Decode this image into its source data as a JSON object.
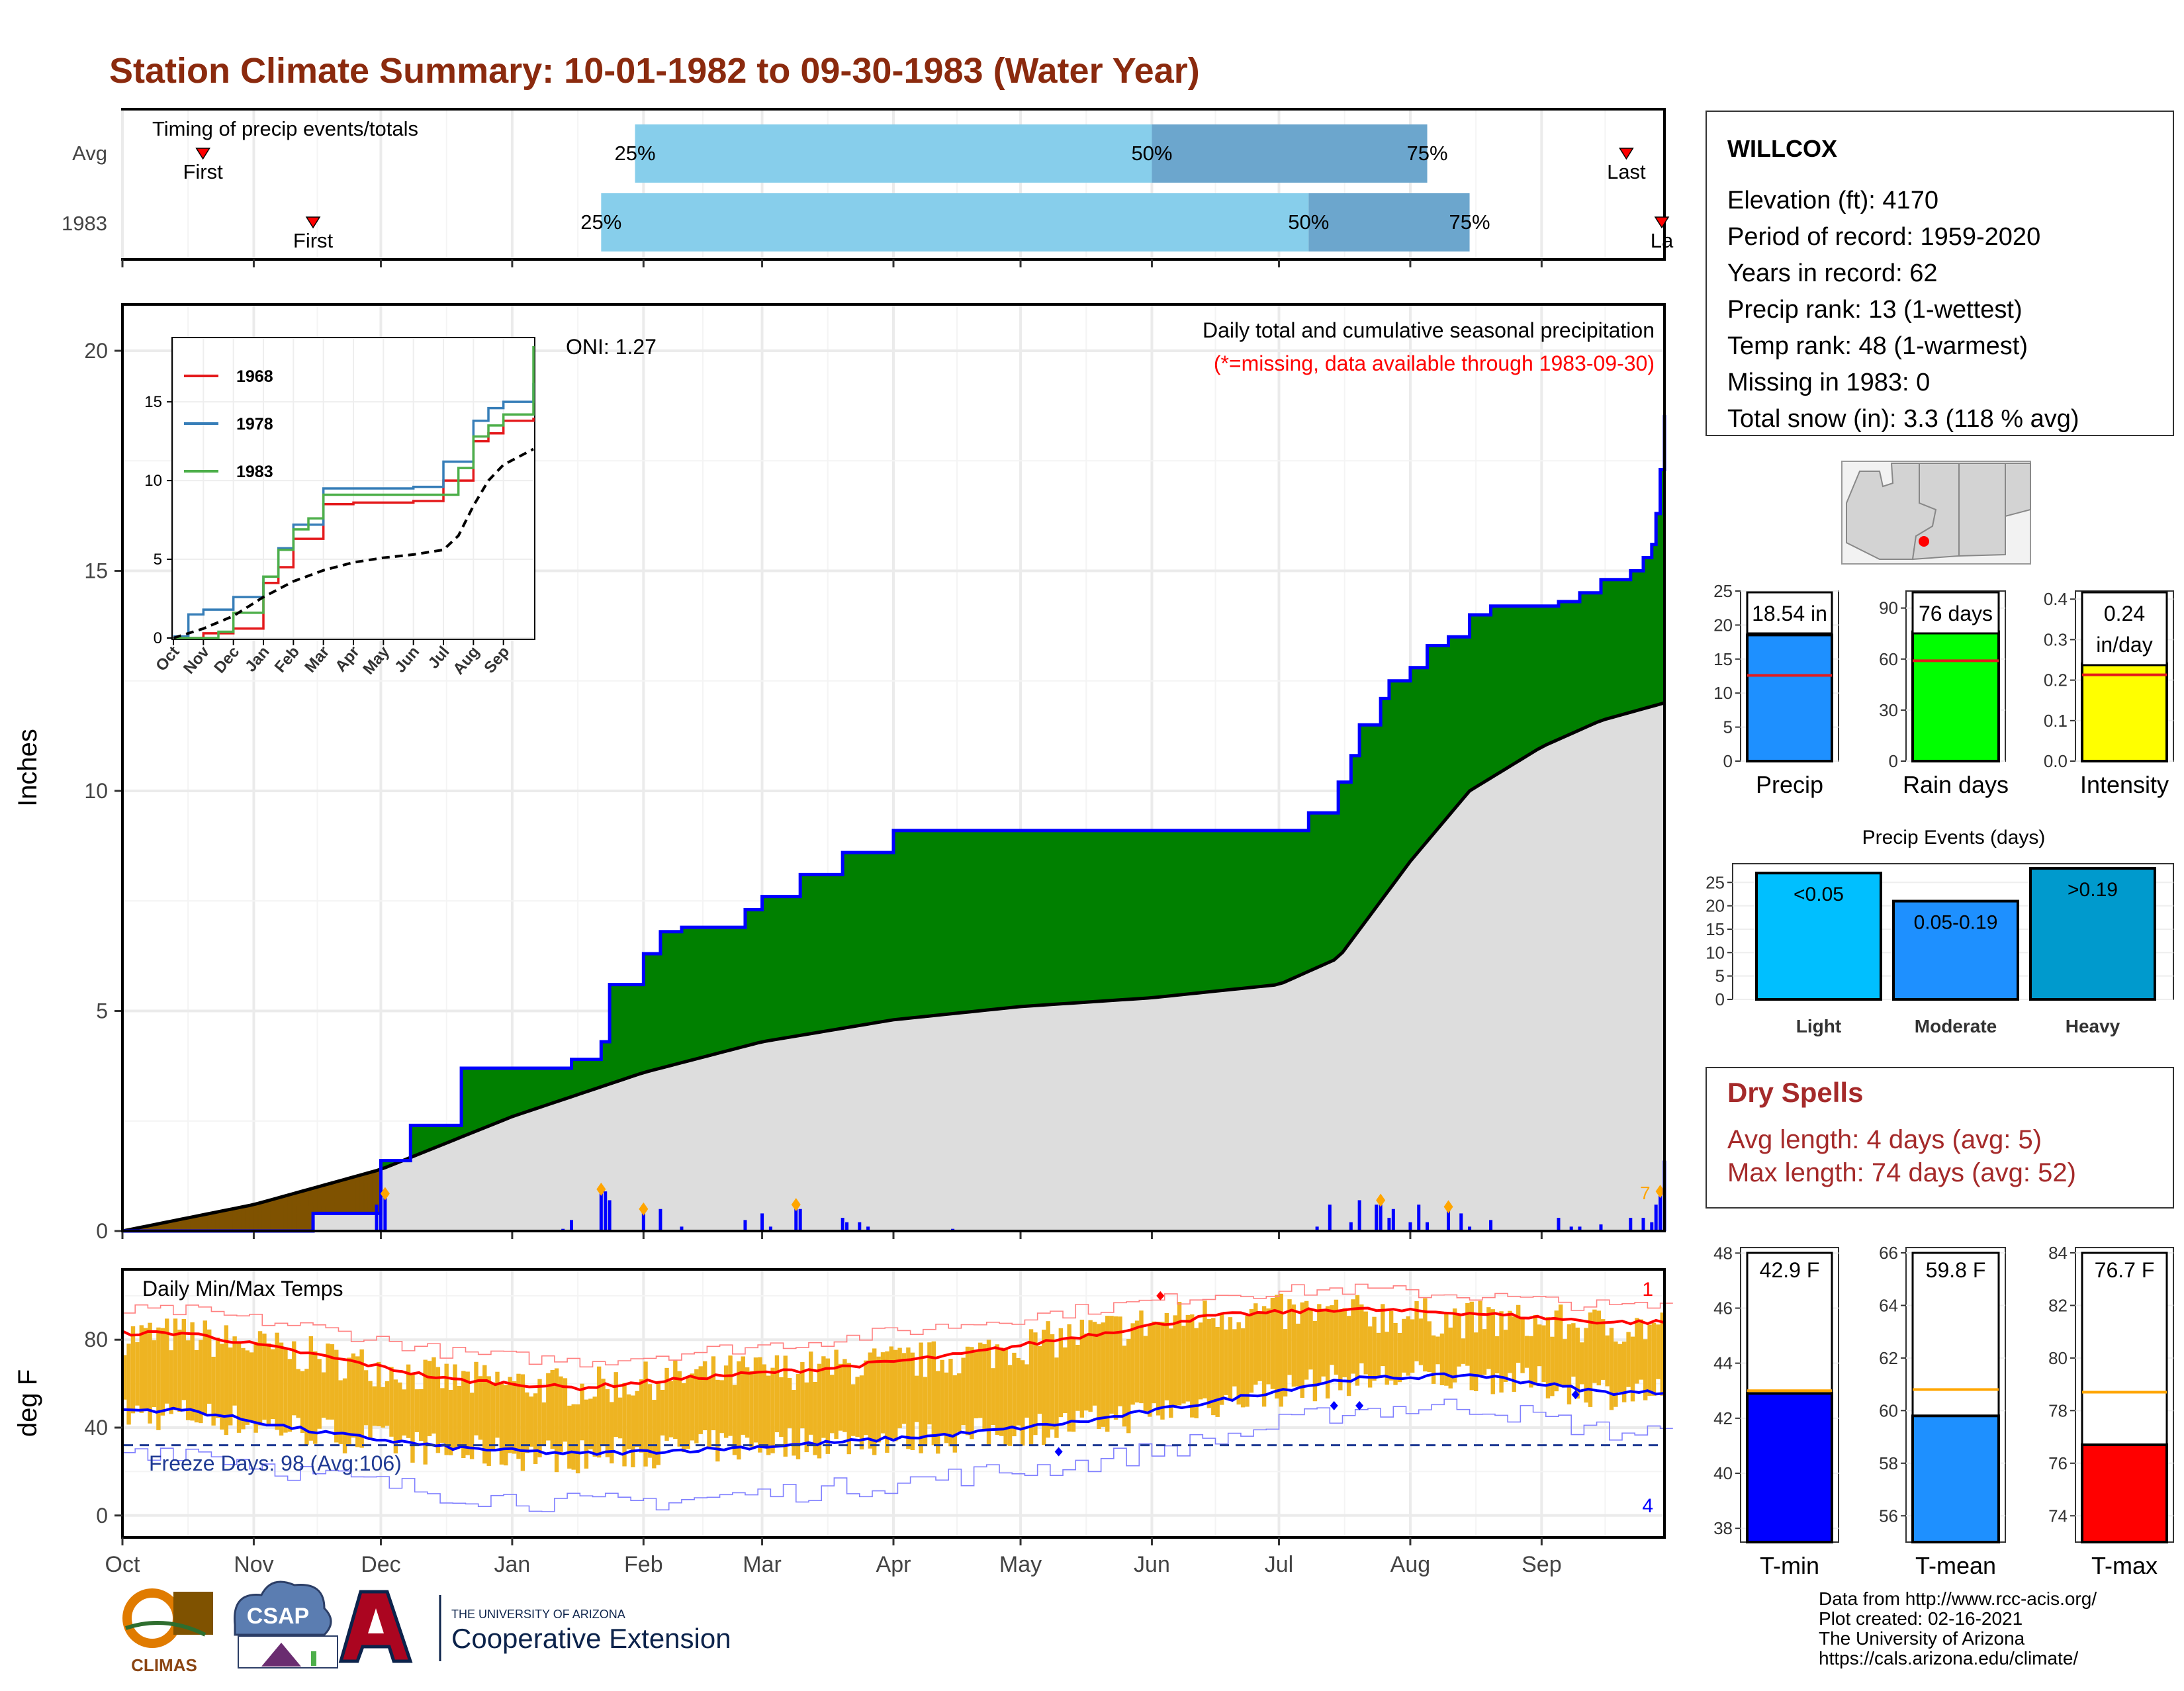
{
  "title": "Station Climate Summary: 10-01-1982 to 09-30-1983 (Water Year)",
  "colors": {
    "title": "#8B2A0E",
    "light_blue": "#87CEEB",
    "steel_blue": "#6CA6CD",
    "green": "#008000",
    "brown": "#7F5200",
    "blue": "#0000FF",
    "gray_fill": "#DDDDDD",
    "orange": "#FFA500",
    "dry_red": "#A52A2A",
    "temp_bar": "#EEB422",
    "red": "#FF0000"
  },
  "timing": {
    "label": "Timing of precip events/totals",
    "rows": [
      {
        "name": "Avg",
        "first": "10-20",
        "last": "09-21",
        "q25": "Jan 30",
        "q50": "Jun 01",
        "q75": "Aug 05",
        "first_label": "First",
        "last_label": "Last",
        "q25_label": "25%",
        "q50_label": "50%",
        "q75_label": "75%"
      },
      {
        "name": "1983",
        "first": "11-15",
        "last": "09-30",
        "q25": "Jan 22",
        "q50": "Jul 08",
        "q75": "Aug 15",
        "first_label": "First",
        "last_label": "La",
        "q25_label": "25%",
        "q50_label": "50%",
        "q75_label": "75%"
      }
    ]
  },
  "main_chart": {
    "ylabel": "Inches",
    "yticks": [
      0,
      5,
      10,
      15,
      20
    ],
    "ylim": [
      0,
      20
    ],
    "oni": "ONI: 1.27",
    "subtitle": "Daily total and cumulative seasonal precipitation",
    "missing_note": "(*=missing, data available through 1983-09-30)",
    "corner_label": "7",
    "month_ticks": [
      "Oct",
      "Nov",
      "Dec",
      "Jan",
      "Feb",
      "Mar",
      "Apr",
      "May",
      "Jun",
      "Jul",
      "Aug",
      "Sep"
    ]
  },
  "inset": {
    "yticks": [
      0,
      5,
      10,
      15
    ],
    "months": [
      "Oct",
      "Nov",
      "Dec",
      "Jan",
      "Feb",
      "Mar",
      "Apr",
      "May",
      "Jun",
      "Jul",
      "Aug",
      "Sep"
    ],
    "legend": [
      {
        "year": "1968",
        "color": "#E41A1C"
      },
      {
        "year": "1978",
        "color": "#377EB8"
      },
      {
        "year": "1983",
        "color": "#4DAF4A"
      }
    ]
  },
  "temp_chart": {
    "title": "Daily Min/Max Temps",
    "ylabel": "deg F",
    "yticks": [
      0,
      40,
      80
    ],
    "freeze_text": "Freeze Days: 98 (Avg:106)",
    "record_high_count": "1",
    "record_low_count": "4",
    "month_ticks": [
      "Oct",
      "Nov",
      "Dec",
      "Jan",
      "Feb",
      "Mar",
      "Apr",
      "May",
      "Jun",
      "Jul",
      "Aug",
      "Sep"
    ]
  },
  "station": {
    "name": "WILLCOX",
    "lines": [
      "Elevation (ft): 4170",
      "Period of record: 1959-2020",
      "Years in record: 62",
      "Precip rank: 13 (1-wettest)",
      "Temp rank: 48 (1-warmest)",
      "Missing in 1983: 0",
      "Total snow (in): 3.3 (118 % avg)"
    ]
  },
  "precip_stats": [
    {
      "label": "Precip",
      "value_label": "18.54 in",
      "yticks": [
        "0",
        "5",
        "10",
        "15",
        "20",
        "25"
      ]
    },
    {
      "label": "Rain days",
      "value_label": "76 days",
      "yticks": [
        "0",
        "30",
        "60",
        "90"
      ]
    },
    {
      "label": "Intensity",
      "value_label": "0.24 in/day",
      "value_line1": "0.24",
      "value_line2": "in/day",
      "yticks": [
        "0.0",
        "0.1",
        "0.2",
        "0.3",
        "0.4"
      ]
    }
  ],
  "precip_events": {
    "title": "Precip Events (days)",
    "yticks": [
      "0",
      "5",
      "10",
      "15",
      "20",
      "25"
    ],
    "bars": [
      {
        "label": "Light",
        "inner": "<0.05",
        "value": 27,
        "color": "#00BFFF"
      },
      {
        "label": "Moderate",
        "inner": "0.05-0.19",
        "value": 21,
        "color": "#1E90FF"
      },
      {
        "label": "Heavy",
        "inner": ">0.19",
        "value": 28,
        "color": "#009ACD"
      }
    ]
  },
  "dry_spells": {
    "title": "Dry Spells",
    "avg_length": "Avg length: 4 days (avg: 5)",
    "max_length": "Max length: 74 days (avg: 52)"
  },
  "temp_stats": [
    {
      "label": "T-min",
      "value_label": "42.9 F",
      "value": 42.9,
      "avg": 43.0,
      "ylim": [
        37.5,
        48.2
      ],
      "yticks": [
        38,
        40,
        42,
        44,
        46,
        48
      ],
      "color": "#0000FF"
    },
    {
      "label": "T-mean",
      "value_label": "59.8 F",
      "value": 59.8,
      "avg": 60.8,
      "ylim": [
        55.0,
        66.2
      ],
      "yticks": [
        56,
        58,
        60,
        62,
        64,
        66
      ],
      "color": "#1E90FF"
    },
    {
      "label": "T-max",
      "value_label": "76.7 F",
      "value": 76.7,
      "avg": 78.7,
      "ylim": [
        73.0,
        84.2
      ],
      "yticks": [
        74,
        76,
        78,
        80,
        82,
        84
      ],
      "color": "#FF0000"
    }
  ],
  "chart_data": [
    {
      "type": "area",
      "title": "Daily total and cumulative seasonal precipitation",
      "ylabel": "Inches",
      "ylim": [
        0,
        20
      ],
      "cumulative_1983": {
        "x": [
          "10-01",
          "11-15",
          "12-01",
          "12-08",
          "12-20",
          "01-15",
          "01-22",
          "01-24",
          "02-01",
          "02-05",
          "02-10",
          "02-25",
          "03-01",
          "03-10",
          "03-20",
          "04-01",
          "05-01",
          "06-01",
          "07-01",
          "07-08",
          "07-15",
          "07-18",
          "07-20",
          "07-25",
          "07-27",
          "08-01",
          "08-05",
          "08-10",
          "08-15",
          "08-20",
          "09-01",
          "09-05",
          "09-10",
          "09-15",
          "09-22",
          "09-25",
          "09-27",
          "09-28",
          "09-29",
          "09-30"
        ],
        "y": [
          0,
          0.4,
          1.6,
          2.4,
          3.7,
          3.9,
          4.3,
          5.6,
          6.3,
          6.8,
          6.9,
          7.3,
          7.6,
          8.1,
          8.6,
          9.1,
          9.1,
          9.1,
          9.1,
          9.5,
          10.2,
          10.8,
          11.5,
          12.1,
          12.5,
          12.8,
          13.3,
          13.5,
          14.0,
          14.2,
          14.2,
          14.3,
          14.5,
          14.8,
          15.0,
          15.3,
          15.6,
          16.3,
          17.3,
          18.54
        ]
      },
      "average_cumulative": {
        "x": [
          "10-01",
          "11-01",
          "12-01",
          "01-01",
          "02-01",
          "03-01",
          "04-01",
          "05-01",
          "06-01",
          "07-01",
          "07-15",
          "08-01",
          "08-15",
          "09-01",
          "09-15",
          "09-30"
        ],
        "y": [
          0,
          0.6,
          1.4,
          2.6,
          3.6,
          4.3,
          4.8,
          5.1,
          5.3,
          5.6,
          6.2,
          8.4,
          10.0,
          11.0,
          11.6,
          12.0
        ]
      },
      "daily_precip": {
        "x": [
          "11-15",
          "11-30",
          "12-01",
          "12-02",
          "01-13",
          "01-15",
          "01-22",
          "01-23",
          "01-24",
          "02-01",
          "02-05",
          "02-10",
          "02-25",
          "03-01",
          "03-03",
          "03-09",
          "03-10",
          "03-20",
          "03-21",
          "03-24",
          "03-26",
          "04-15",
          "07-10",
          "07-13",
          "07-18",
          "07-20",
          "07-24",
          "07-25",
          "07-27",
          "07-28",
          "08-01",
          "08-03",
          "08-05",
          "08-10",
          "08-13",
          "08-15",
          "08-20",
          "09-05",
          "09-08",
          "09-10",
          "09-15",
          "09-22",
          "09-25",
          "09-27",
          "09-28",
          "09-29",
          "09-30"
        ],
        "y": [
          0.25,
          0.6,
          1.1,
          0.85,
          0.05,
          0.25,
          0.95,
          0.9,
          0.7,
          0.5,
          0.5,
          0.1,
          0.25,
          0.4,
          0.1,
          0.6,
          0.5,
          0.3,
          0.2,
          0.2,
          0.1,
          0.05,
          0.1,
          0.6,
          0.2,
          0.7,
          0.6,
          0.7,
          0.3,
          0.5,
          0.2,
          0.6,
          0.2,
          0.55,
          0.4,
          0.1,
          0.25,
          0.3,
          0.1,
          0.1,
          0.15,
          0.3,
          0.3,
          0.2,
          0.6,
          0.9,
          1.6
        ]
      }
    },
    {
      "type": "line",
      "title": "",
      "ylim": [
        0,
        19
      ],
      "xlabels": [
        "Oct",
        "Nov",
        "Dec",
        "Jan",
        "Feb",
        "Mar",
        "Apr",
        "May",
        "Jun",
        "Jul",
        "Aug",
        "Sep"
      ],
      "series": [
        {
          "name": "1968",
          "x": [
            0,
            1,
            2,
            3,
            3.5,
            4,
            5,
            6,
            7,
            8,
            9,
            10,
            10.5,
            11,
            12
          ],
          "y": [
            0,
            0.3,
            0.6,
            3.5,
            4.5,
            6.3,
            8.5,
            8.6,
            8.6,
            8.7,
            10.0,
            12.5,
            13.0,
            13.8,
            14.0
          ]
        },
        {
          "name": "1978",
          "x": [
            0,
            0.5,
            1,
            2,
            3,
            3.5,
            4,
            5,
            6,
            7,
            8,
            9,
            10,
            10.5,
            11,
            12
          ],
          "y": [
            0.1,
            1.5,
            1.8,
            2.6,
            3.9,
            5.7,
            7.2,
            9.5,
            9.5,
            9.5,
            9.6,
            11.2,
            13.8,
            14.6,
            15.0,
            16.2
          ]
        },
        {
          "name": "1983",
          "x": [
            0,
            1.5,
            2,
            3,
            3.5,
            4,
            4.5,
            5,
            6,
            7,
            8,
            9,
            9.5,
            10,
            10.5,
            11,
            12
          ],
          "y": [
            0,
            0.4,
            1.6,
            3.9,
            5.6,
            6.9,
            7.6,
            9.1,
            9.1,
            9.1,
            9.1,
            9.1,
            10.8,
            12.8,
            13.5,
            14.2,
            18.54
          ]
        },
        {
          "name": "avg",
          "x": [
            0,
            1,
            2,
            3,
            4,
            5,
            6,
            7,
            8,
            9,
            9.5,
            10,
            10.5,
            11,
            12
          ],
          "y": [
            0,
            0.6,
            1.4,
            2.6,
            3.6,
            4.3,
            4.8,
            5.1,
            5.3,
            5.6,
            6.5,
            8.4,
            10.0,
            11.0,
            12.0
          ]
        }
      ]
    },
    {
      "type": "bar",
      "title": "Daily Min/Max Temps",
      "ylabel": "deg F",
      "ylim": [
        -5,
        110
      ],
      "months": [
        "Oct",
        "Nov",
        "Dec",
        "Jan",
        "Feb",
        "Mar",
        "Apr",
        "May",
        "Jun",
        "Jul",
        "Aug",
        "Sep"
      ],
      "avg_max": [
        83,
        73,
        62,
        58,
        63,
        67,
        73,
        82,
        91,
        94,
        92,
        88
      ],
      "avg_min": [
        48,
        38,
        31,
        28,
        30,
        33,
        37,
        43,
        52,
        62,
        64,
        56
      ],
      "record_high": [
        93,
        85,
        74,
        70,
        75,
        80,
        87,
        94,
        101,
        103,
        100,
        95
      ],
      "record_low": [
        30,
        18,
        10,
        5,
        8,
        12,
        18,
        24,
        35,
        48,
        50,
        38
      ],
      "freeze_line": 32,
      "observed_max_approx": [
        82,
        72,
        62,
        58,
        64,
        67,
        72,
        83,
        92,
        92,
        89,
        86
      ],
      "observed_min_approx": [
        46,
        38,
        29,
        27,
        31,
        34,
        36,
        42,
        52,
        62,
        64,
        56
      ]
    },
    {
      "type": "bar",
      "title": "Precip Events (days)",
      "categories": [
        "Light",
        "Moderate",
        "Heavy"
      ],
      "values": [
        27,
        21,
        28
      ]
    }
  ]
}
